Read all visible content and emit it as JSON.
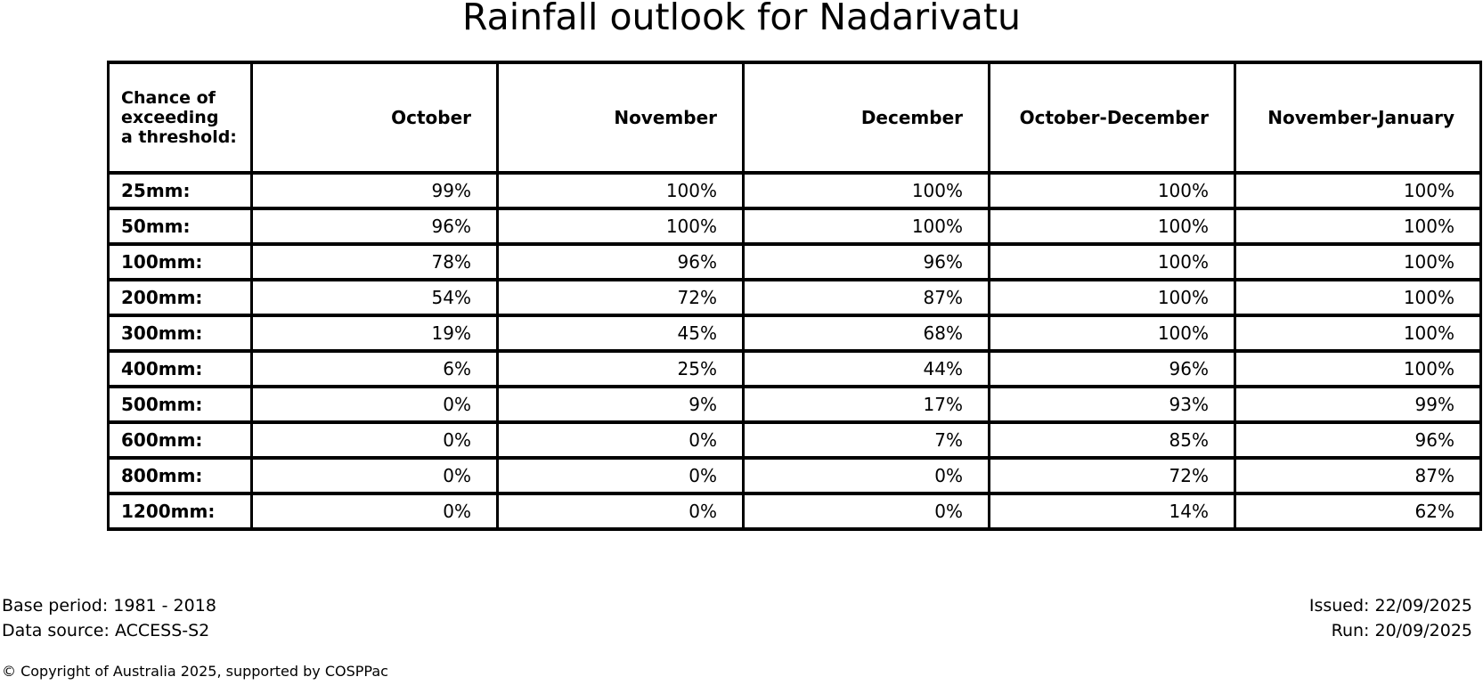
{
  "title": "Rainfall outlook for Nadarivatu",
  "table": {
    "corner_header_lines": [
      "Chance of",
      "exceeding",
      "a threshold:"
    ]
  },
  "chart_data": {
    "type": "table",
    "title": "Rainfall outlook for Nadarivatu",
    "row_header_label": "Chance of exceeding a threshold:",
    "columns": [
      "October",
      "November",
      "December",
      "October-December",
      "November-January"
    ],
    "thresholds_mm": [
      25,
      50,
      100,
      200,
      300,
      400,
      500,
      600,
      800,
      1200
    ],
    "values_percent": [
      [
        99,
        100,
        100,
        100,
        100
      ],
      [
        96,
        100,
        100,
        100,
        100
      ],
      [
        78,
        96,
        96,
        100,
        100
      ],
      [
        54,
        72,
        87,
        100,
        100
      ],
      [
        19,
        45,
        68,
        100,
        100
      ],
      [
        6,
        25,
        44,
        96,
        100
      ],
      [
        0,
        9,
        17,
        93,
        99
      ],
      [
        0,
        0,
        7,
        85,
        96
      ],
      [
        0,
        0,
        0,
        72,
        87
      ],
      [
        0,
        0,
        0,
        14,
        62
      ]
    ]
  },
  "footer": {
    "base_period": "Base period: 1981 - 2018",
    "data_source": "Data source: ACCESS-S2",
    "issued": "Issued: 22/09/2025",
    "run": "Run: 20/09/2025",
    "copyright": "© Copyright of Australia 2025, supported by COSPPac"
  }
}
